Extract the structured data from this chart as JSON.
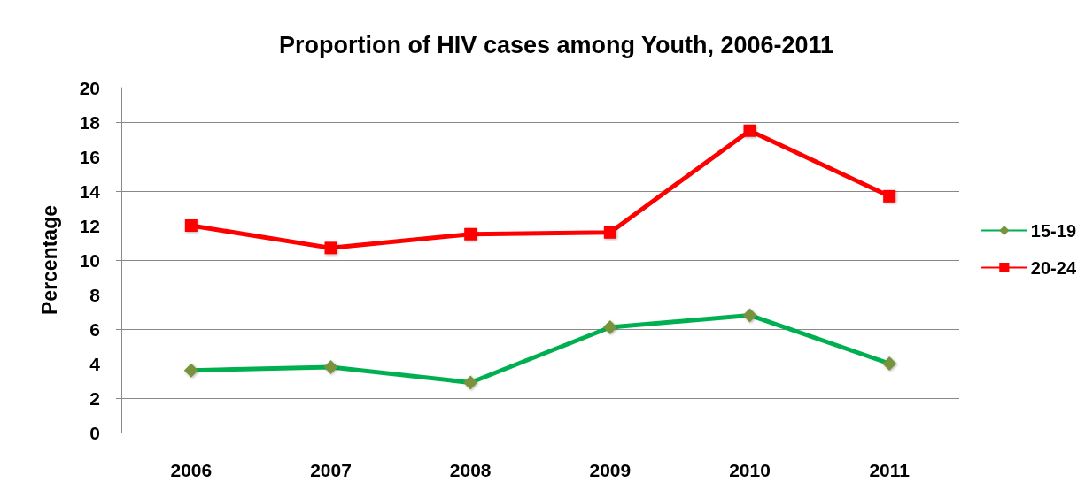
{
  "chart_data": {
    "type": "line",
    "title": "Proportion of HIV cases among Youth, 2006-2011",
    "ylabel": "Percentage",
    "categories": [
      "2006",
      "2007",
      "2008",
      "2009",
      "2010",
      "2011"
    ],
    "series": [
      {
        "name": "15-19",
        "color": "#00b050",
        "marker": "diamond",
        "values": [
          3.6,
          3.8,
          2.9,
          6.1,
          6.8,
          4.0
        ]
      },
      {
        "name": "20-24",
        "color": "#ff0000",
        "marker": "square",
        "values": [
          12.0,
          10.7,
          11.5,
          11.6,
          17.5,
          13.7
        ]
      }
    ],
    "ylim": [
      0,
      20
    ],
    "yticks": [
      0,
      2,
      4,
      6,
      8,
      10,
      12,
      14,
      16,
      18,
      20
    ],
    "grid": "y",
    "legend": "right"
  }
}
